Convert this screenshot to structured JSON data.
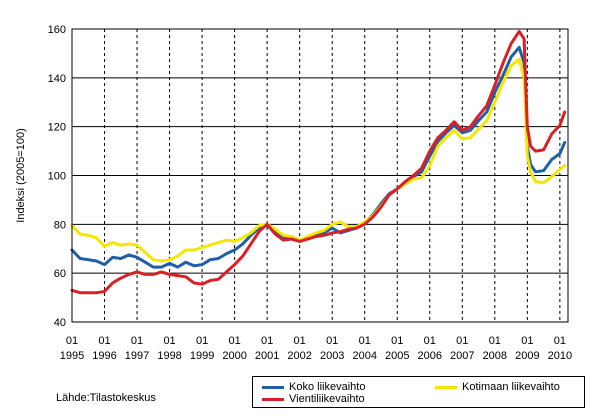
{
  "chart_data": {
    "type": "line",
    "ylabel": "Indeksi (2005=100)",
    "xlabel": "",
    "ylim": [
      40,
      160
    ],
    "yticks": [
      40,
      60,
      80,
      100,
      120,
      140,
      160
    ],
    "grid": "horizontal solid, vertical dashed at each year",
    "legend_position": "bottom-right",
    "x_start": 1995,
    "x_end": 2010.25,
    "x_month_label": "01",
    "x_years": [
      "1995",
      "1996",
      "1997",
      "1998",
      "1999",
      "2000",
      "2001",
      "2002",
      "2003",
      "2004",
      "2005",
      "2006",
      "2007",
      "2008",
      "2009",
      "2010"
    ],
    "series": [
      {
        "name": "Koko liikevaihto",
        "color": "#1f5fa8",
        "points": [
          [
            1995.0,
            69.5
          ],
          [
            1995.25,
            66.0
          ],
          [
            1995.5,
            65.5
          ],
          [
            1995.75,
            65.0
          ],
          [
            1996.0,
            63.5
          ],
          [
            1996.25,
            66.5
          ],
          [
            1996.5,
            66.0
          ],
          [
            1996.75,
            67.5
          ],
          [
            1997.0,
            66.5
          ],
          [
            1997.25,
            64.5
          ],
          [
            1997.5,
            62.5
          ],
          [
            1997.75,
            62.5
          ],
          [
            1998.0,
            64.0
          ],
          [
            1998.25,
            62.5
          ],
          [
            1998.5,
            64.5
          ],
          [
            1998.75,
            63.0
          ],
          [
            1999.0,
            63.5
          ],
          [
            1999.25,
            65.5
          ],
          [
            1999.5,
            66.0
          ],
          [
            1999.75,
            68.0
          ],
          [
            2000.0,
            69.5
          ],
          [
            2000.25,
            72.0
          ],
          [
            2000.5,
            75.5
          ],
          [
            2000.75,
            78.5
          ],
          [
            2001.0,
            79.5
          ],
          [
            2001.25,
            77.0
          ],
          [
            2001.5,
            74.5
          ],
          [
            2001.75,
            75.0
          ],
          [
            2002.0,
            73.5
          ],
          [
            2002.25,
            74.5
          ],
          [
            2002.5,
            75.5
          ],
          [
            2002.75,
            76.5
          ],
          [
            2003.0,
            78.5
          ],
          [
            2003.25,
            76.5
          ],
          [
            2003.5,
            77.5
          ],
          [
            2003.75,
            78.5
          ],
          [
            2004.0,
            80.5
          ],
          [
            2004.25,
            84.0
          ],
          [
            2004.5,
            88.5
          ],
          [
            2004.75,
            92.5
          ],
          [
            2005.0,
            94.5
          ],
          [
            2005.25,
            97.5
          ],
          [
            2005.5,
            99.5
          ],
          [
            2005.75,
            101.5
          ],
          [
            2006.0,
            108.0
          ],
          [
            2006.25,
            114.0
          ],
          [
            2006.5,
            117.5
          ],
          [
            2006.75,
            120.5
          ],
          [
            2007.0,
            117.5
          ],
          [
            2007.25,
            118.5
          ],
          [
            2007.5,
            122.5
          ],
          [
            2007.75,
            126.0
          ],
          [
            2008.0,
            134.0
          ],
          [
            2008.25,
            141.0
          ],
          [
            2008.5,
            148.5
          ],
          [
            2008.75,
            152.5
          ],
          [
            2008.9,
            146.0
          ],
          [
            2009.0,
            112.0
          ],
          [
            2009.1,
            104.5
          ],
          [
            2009.25,
            101.5
          ],
          [
            2009.5,
            102.0
          ],
          [
            2009.75,
            106.5
          ],
          [
            2010.0,
            109.0
          ],
          [
            2010.15,
            113.5
          ]
        ]
      },
      {
        "name": "Kotimaan liikevaihto",
        "color": "#f5e600",
        "points": [
          [
            1995.0,
            79.5
          ],
          [
            1995.25,
            76.0
          ],
          [
            1995.5,
            75.5
          ],
          [
            1995.75,
            74.5
          ],
          [
            1996.0,
            71.0
          ],
          [
            1996.25,
            72.5
          ],
          [
            1996.5,
            71.5
          ],
          [
            1996.75,
            72.0
          ],
          [
            1997.0,
            71.5
          ],
          [
            1997.25,
            68.5
          ],
          [
            1997.5,
            65.5
          ],
          [
            1997.75,
            65.0
          ],
          [
            1998.0,
            65.5
          ],
          [
            1998.25,
            67.0
          ],
          [
            1998.5,
            69.5
          ],
          [
            1998.75,
            69.5
          ],
          [
            1999.0,
            70.5
          ],
          [
            1999.25,
            71.5
          ],
          [
            1999.5,
            72.5
          ],
          [
            1999.75,
            73.5
          ],
          [
            2000.0,
            73.0
          ],
          [
            2000.25,
            74.5
          ],
          [
            2000.5,
            76.5
          ],
          [
            2000.75,
            79.5
          ],
          [
            2001.0,
            80.0
          ],
          [
            2001.25,
            78.0
          ],
          [
            2001.5,
            75.5
          ],
          [
            2001.75,
            75.0
          ],
          [
            2002.0,
            73.5
          ],
          [
            2002.25,
            75.0
          ],
          [
            2002.5,
            76.5
          ],
          [
            2002.75,
            77.5
          ],
          [
            2003.0,
            80.0
          ],
          [
            2003.25,
            81.0
          ],
          [
            2003.5,
            79.0
          ],
          [
            2003.75,
            79.0
          ],
          [
            2004.0,
            81.0
          ],
          [
            2004.25,
            83.5
          ],
          [
            2004.5,
            87.5
          ],
          [
            2004.75,
            92.0
          ],
          [
            2005.0,
            94.5
          ],
          [
            2005.25,
            96.5
          ],
          [
            2005.5,
            98.5
          ],
          [
            2005.75,
            99.0
          ],
          [
            2006.0,
            104.0
          ],
          [
            2006.25,
            112.0
          ],
          [
            2006.5,
            115.5
          ],
          [
            2006.75,
            118.5
          ],
          [
            2007.0,
            115.0
          ],
          [
            2007.25,
            115.5
          ],
          [
            2007.5,
            119.0
          ],
          [
            2007.75,
            122.5
          ],
          [
            2008.0,
            130.0
          ],
          [
            2008.25,
            138.0
          ],
          [
            2008.5,
            145.0
          ],
          [
            2008.75,
            147.5
          ],
          [
            2008.9,
            140.0
          ],
          [
            2009.0,
            108.0
          ],
          [
            2009.1,
            101.5
          ],
          [
            2009.25,
            97.5
          ],
          [
            2009.5,
            97.0
          ],
          [
            2009.75,
            99.5
          ],
          [
            2010.0,
            102.5
          ],
          [
            2010.15,
            104.0
          ]
        ]
      },
      {
        "name": "Vientiliikevaihto",
        "color": "#d92027",
        "points": [
          [
            1995.0,
            53.0
          ],
          [
            1995.25,
            52.0
          ],
          [
            1995.5,
            52.0
          ],
          [
            1995.75,
            52.0
          ],
          [
            1996.0,
            52.5
          ],
          [
            1996.25,
            56.0
          ],
          [
            1996.5,
            58.0
          ],
          [
            1996.75,
            59.5
          ],
          [
            1997.0,
            60.5
          ],
          [
            1997.25,
            59.5
          ],
          [
            1997.5,
            59.5
          ],
          [
            1997.75,
            60.5
          ],
          [
            1998.0,
            59.5
          ],
          [
            1998.25,
            59.0
          ],
          [
            1998.5,
            58.5
          ],
          [
            1998.75,
            56.0
          ],
          [
            1999.0,
            55.5
          ],
          [
            1999.25,
            57.0
          ],
          [
            1999.5,
            57.5
          ],
          [
            1999.75,
            60.5
          ],
          [
            2000.0,
            63.5
          ],
          [
            2000.25,
            67.0
          ],
          [
            2000.5,
            72.0
          ],
          [
            2000.75,
            77.0
          ],
          [
            2001.0,
            80.0
          ],
          [
            2001.25,
            76.0
          ],
          [
            2001.5,
            73.5
          ],
          [
            2001.75,
            74.0
          ],
          [
            2002.0,
            73.0
          ],
          [
            2002.25,
            74.0
          ],
          [
            2002.5,
            75.0
          ],
          [
            2002.75,
            75.5
          ],
          [
            2003.0,
            76.5
          ],
          [
            2003.25,
            77.0
          ],
          [
            2003.5,
            78.0
          ],
          [
            2003.75,
            78.5
          ],
          [
            2004.0,
            80.0
          ],
          [
            2004.25,
            83.0
          ],
          [
            2004.5,
            87.0
          ],
          [
            2004.75,
            92.0
          ],
          [
            2005.0,
            94.5
          ],
          [
            2005.25,
            97.5
          ],
          [
            2005.5,
            100.0
          ],
          [
            2005.75,
            103.0
          ],
          [
            2006.0,
            110.0
          ],
          [
            2006.25,
            115.5
          ],
          [
            2006.5,
            118.5
          ],
          [
            2006.75,
            122.0
          ],
          [
            2007.0,
            118.5
          ],
          [
            2007.25,
            120.0
          ],
          [
            2007.5,
            124.5
          ],
          [
            2007.75,
            128.5
          ],
          [
            2008.0,
            137.0
          ],
          [
            2008.25,
            146.0
          ],
          [
            2008.5,
            154.0
          ],
          [
            2008.75,
            159.0
          ],
          [
            2008.9,
            156.0
          ],
          [
            2009.0,
            120.0
          ],
          [
            2009.1,
            112.0
          ],
          [
            2009.25,
            110.0
          ],
          [
            2009.5,
            110.5
          ],
          [
            2009.75,
            117.0
          ],
          [
            2010.0,
            120.5
          ],
          [
            2010.15,
            126.0
          ]
        ]
      }
    ]
  },
  "legend": {
    "items": [
      {
        "label": "Koko liikevaihto",
        "color": "#1f5fa8"
      },
      {
        "label": "Kotimaan liikevaihto",
        "color": "#f5e600"
      },
      {
        "label": "Vientiliikevaihto",
        "color": "#d92027"
      }
    ]
  },
  "source_text": "Lähde:Tilastokeskus"
}
